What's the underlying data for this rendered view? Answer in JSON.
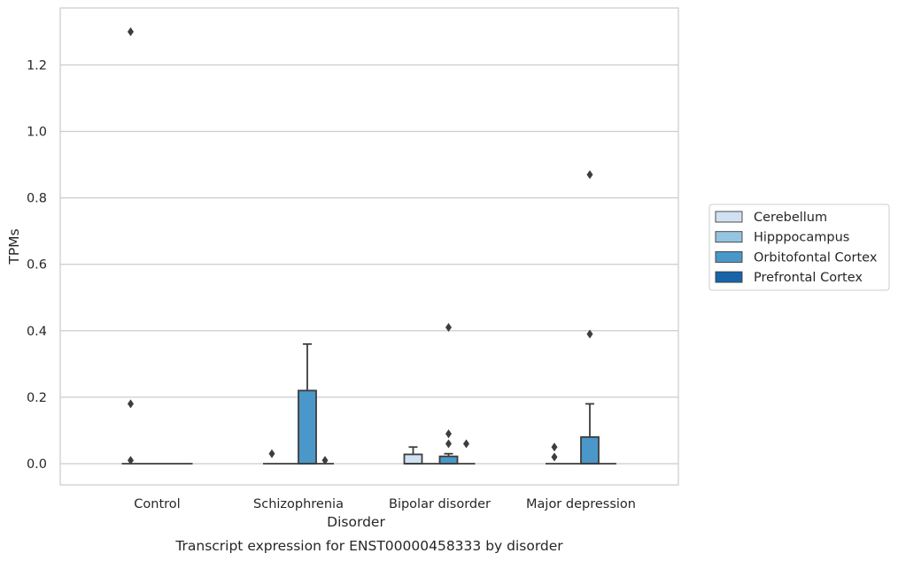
{
  "chart_data": {
    "type": "box",
    "title": "",
    "caption": "Transcript expression for ENST00000458333 by disorder",
    "xlabel": "Disorder",
    "ylabel": "TPMs",
    "ylim": [
      -0.065,
      1.375
    ],
    "yticks": [
      "0.0",
      "0.2",
      "0.4",
      "0.6",
      "0.8",
      "1.0",
      "1.2"
    ],
    "ytick_values": [
      0.0,
      0.2,
      0.4,
      0.6,
      0.8,
      1.0,
      1.2
    ],
    "grid": "horizontal",
    "legend_position": "right",
    "categories": [
      "Control",
      "Schizophrenia",
      "Bipolar disorder",
      "Major depression"
    ],
    "series": [
      {
        "name": "Cerebellum",
        "color": "#d0e1f2",
        "boxes": [
          {
            "q1": 0,
            "median": 0,
            "q3": 0,
            "whislo": 0,
            "whishi": 0,
            "fliers": [
              0.01,
              0.18,
              1.3
            ]
          },
          {
            "q1": 0,
            "median": 0,
            "q3": 0,
            "whislo": 0,
            "whishi": 0,
            "fliers": [
              0.03
            ]
          },
          {
            "q1": 0,
            "median": 0,
            "q3": 0.028,
            "whislo": 0,
            "whishi": 0.05,
            "fliers": []
          },
          {
            "q1": 0,
            "median": 0,
            "q3": 0,
            "whislo": 0,
            "whishi": 0,
            "fliers": [
              0.02,
              0.05
            ]
          }
        ]
      },
      {
        "name": "Hipppocampus",
        "color": "#94c4df",
        "boxes": [
          {
            "q1": 0,
            "median": 0,
            "q3": 0,
            "whislo": 0,
            "whishi": 0,
            "fliers": []
          },
          {
            "q1": 0,
            "median": 0,
            "q3": 0,
            "whislo": 0,
            "whishi": 0,
            "fliers": []
          },
          {
            "q1": 0,
            "median": 0,
            "q3": 0,
            "whislo": 0,
            "whishi": 0,
            "fliers": []
          },
          {
            "q1": 0,
            "median": 0,
            "q3": 0,
            "whislo": 0,
            "whishi": 0,
            "fliers": []
          }
        ]
      },
      {
        "name": "Orbitofontal Cortex",
        "color": "#4a98c9",
        "boxes": [
          {
            "q1": 0,
            "median": 0,
            "q3": 0,
            "whislo": 0,
            "whishi": 0,
            "fliers": []
          },
          {
            "q1": 0,
            "median": 0,
            "q3": 0.22,
            "whislo": 0,
            "whishi": 0.36,
            "fliers": []
          },
          {
            "q1": 0,
            "median": 0,
            "q3": 0.022,
            "whislo": 0,
            "whishi": 0.03,
            "fliers": [
              0.06,
              0.09,
              0.41
            ]
          },
          {
            "q1": 0,
            "median": 0,
            "q3": 0.08,
            "whislo": 0,
            "whishi": 0.18,
            "fliers": [
              0.39,
              0.87
            ]
          }
        ]
      },
      {
        "name": "Prefrontal Cortex",
        "color": "#1764ab",
        "boxes": [
          {
            "q1": 0,
            "median": 0,
            "q3": 0,
            "whislo": 0,
            "whishi": 0,
            "fliers": []
          },
          {
            "q1": 0,
            "median": 0,
            "q3": 0,
            "whislo": 0,
            "whishi": 0,
            "fliers": [
              0.01
            ]
          },
          {
            "q1": 0,
            "median": 0,
            "q3": 0,
            "whislo": 0,
            "whishi": 0,
            "fliers": [
              0.06
            ]
          },
          {
            "q1": 0,
            "median": 0,
            "q3": 0,
            "whislo": 0,
            "whishi": 0,
            "fliers": []
          }
        ]
      }
    ]
  }
}
